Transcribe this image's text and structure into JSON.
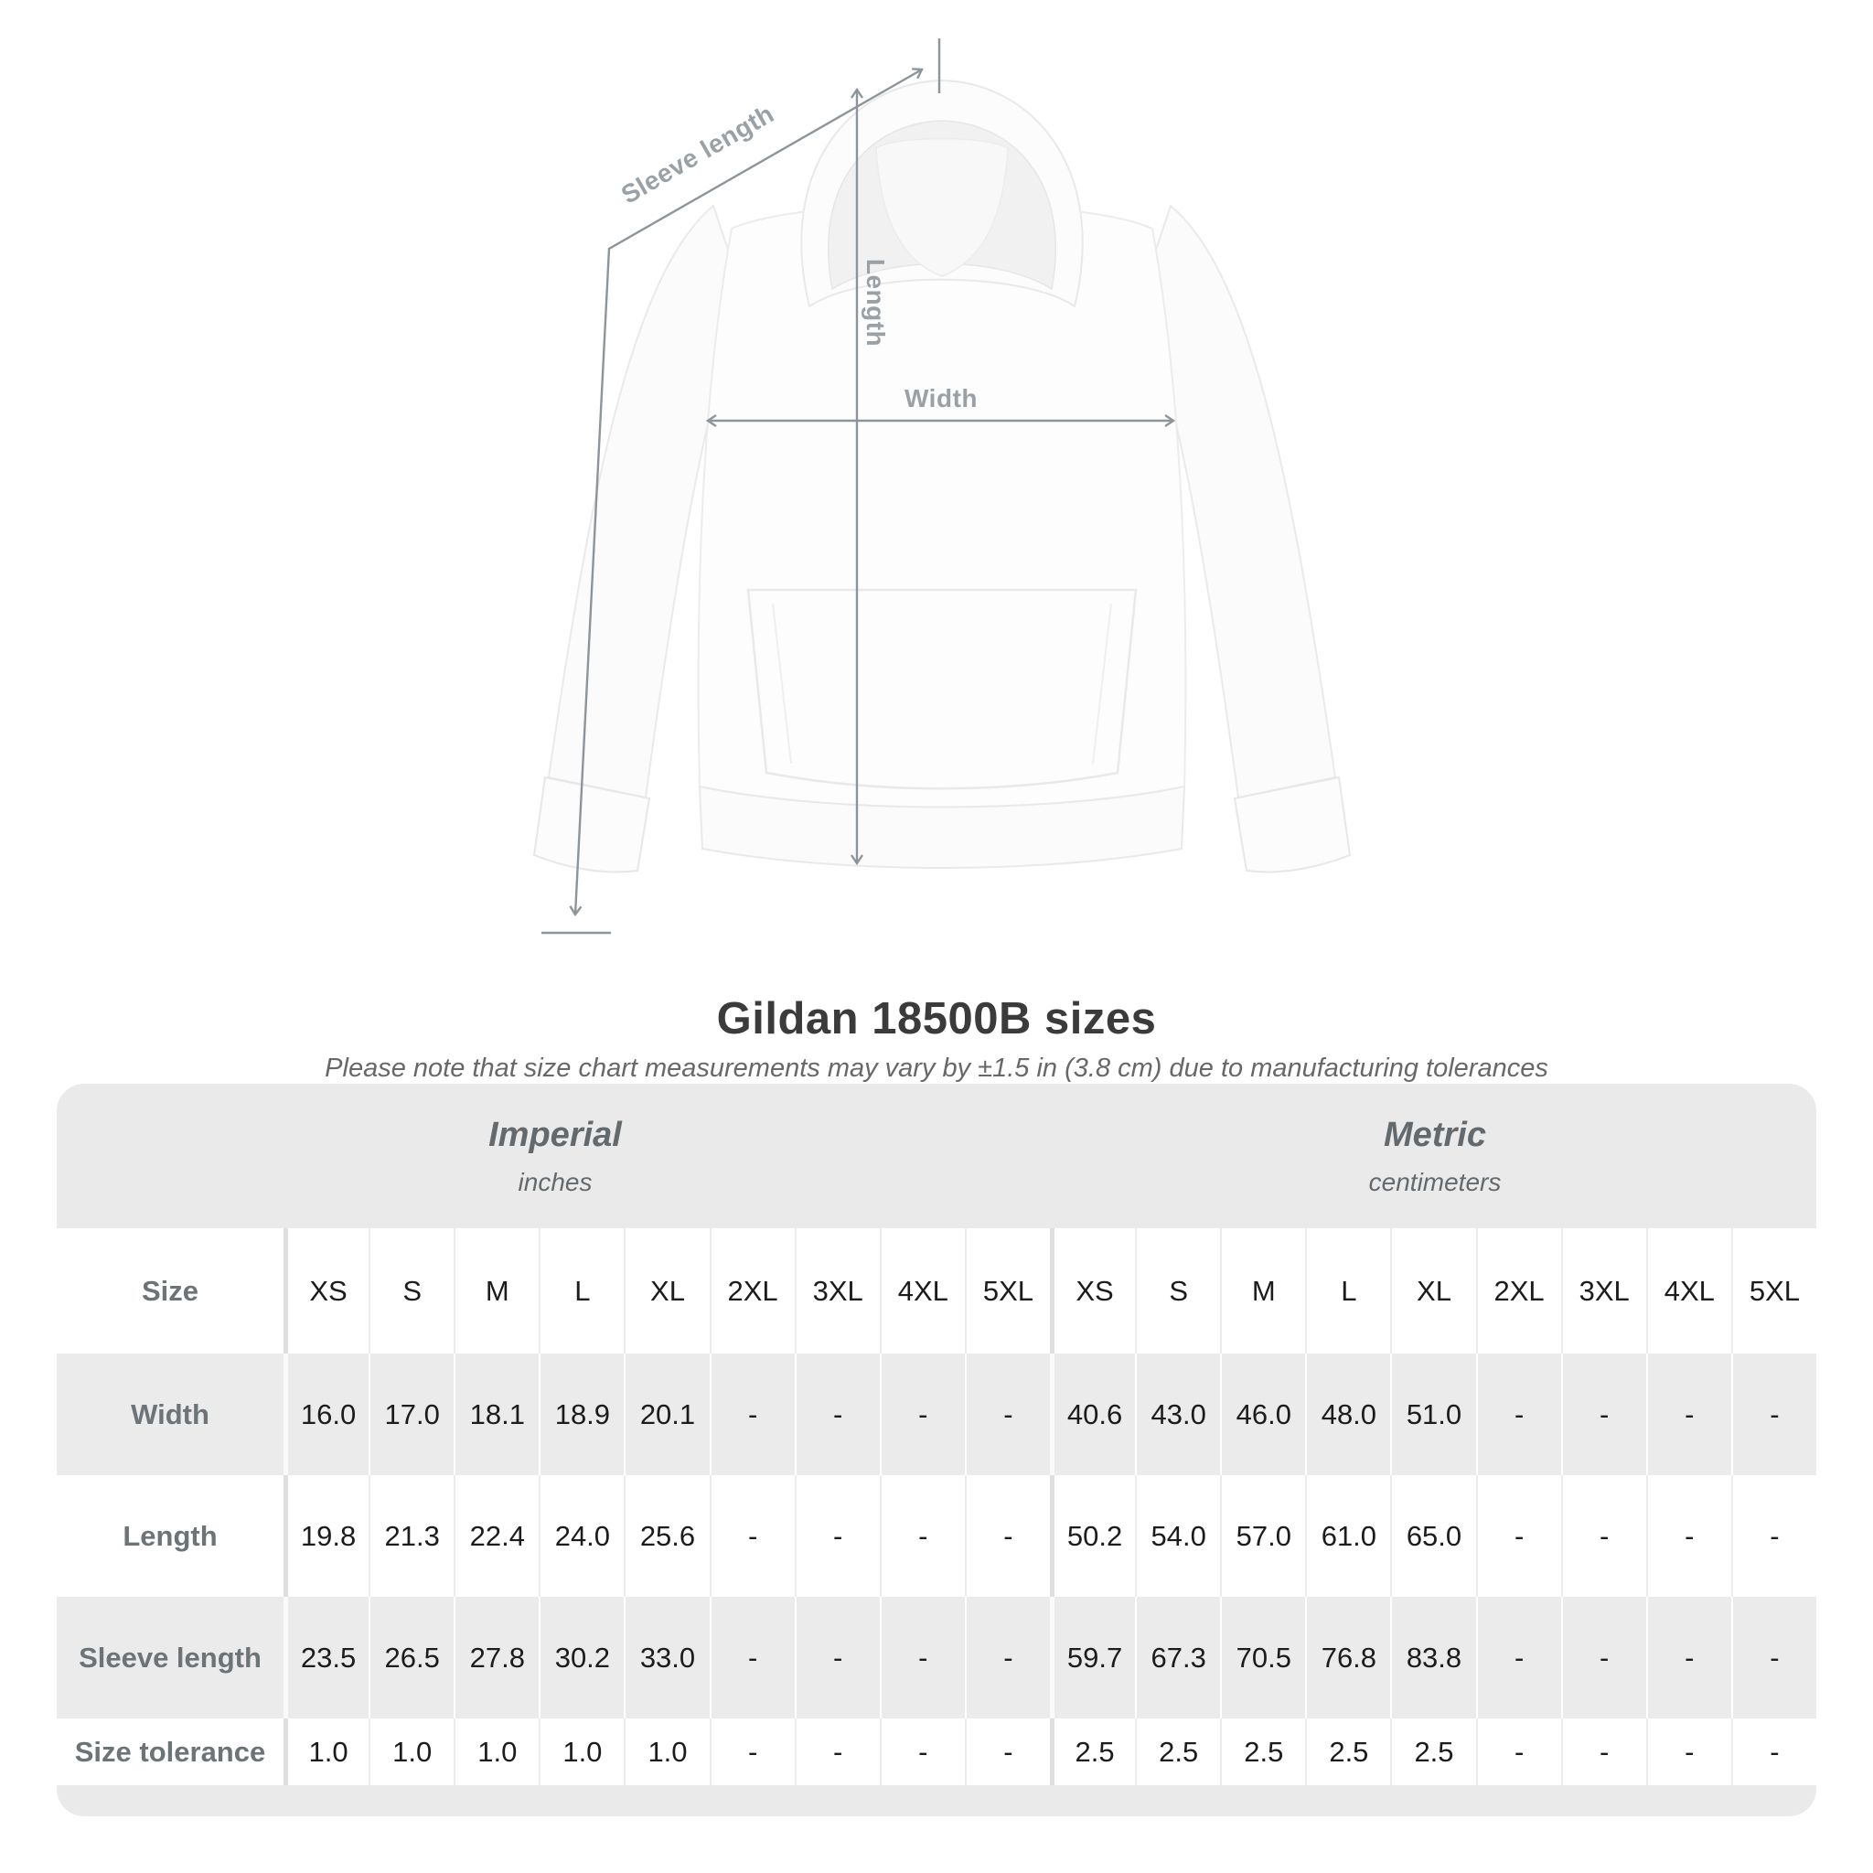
{
  "diagram": {
    "sleeve_length_label": "Sleeve length",
    "length_label": "Length",
    "width_label": "Width"
  },
  "header": {
    "title": "Gildan 18500B sizes",
    "subtitle": "Please note that size chart measurements may vary by ±1.5 in (3.8 cm) due to manufacturing tolerances"
  },
  "table": {
    "size_label": "Size",
    "groups": [
      {
        "name": "Imperial",
        "unit": "inches"
      },
      {
        "name": "Metric",
        "unit": "centimeters"
      }
    ],
    "sizes": [
      "XS",
      "S",
      "M",
      "L",
      "XL",
      "2XL",
      "3XL",
      "4XL",
      "5XL"
    ],
    "rows": [
      {
        "label": "Width",
        "imperial": [
          "16.0",
          "17.0",
          "18.1",
          "18.9",
          "20.1",
          "-",
          "-",
          "-",
          "-"
        ],
        "metric": [
          "40.6",
          "43.0",
          "46.0",
          "48.0",
          "51.0",
          "-",
          "-",
          "-",
          "-"
        ]
      },
      {
        "label": "Length",
        "imperial": [
          "19.8",
          "21.3",
          "22.4",
          "24.0",
          "25.6",
          "-",
          "-",
          "-",
          "-"
        ],
        "metric": [
          "50.2",
          "54.0",
          "57.0",
          "61.0",
          "65.0",
          "-",
          "-",
          "-",
          "-"
        ]
      },
      {
        "label": "Sleeve length",
        "imperial": [
          "23.5",
          "26.5",
          "27.8",
          "30.2",
          "33.0",
          "-",
          "-",
          "-",
          "-"
        ],
        "metric": [
          "59.7",
          "67.3",
          "70.5",
          "76.8",
          "83.8",
          "-",
          "-",
          "-",
          "-"
        ]
      },
      {
        "label": "Size tolerance",
        "imperial": [
          "1.0",
          "1.0",
          "1.0",
          "1.0",
          "1.0",
          "-",
          "-",
          "-",
          "-"
        ],
        "metric": [
          "2.5",
          "2.5",
          "2.5",
          "2.5",
          "2.5",
          "-",
          "-",
          "-",
          "-"
        ]
      }
    ]
  },
  "colors": {
    "band_bg": "#eaeaea",
    "stripe_bg": "#ebebeb",
    "heading_text": "#3b3b3b",
    "muted_text": "#6d7478",
    "value_text": "#1c1c1c",
    "measure_line": "#8d959a",
    "measure_text": "#9aa1a6"
  },
  "chart_data": {
    "type": "table",
    "title": "Gildan 18500B sizes",
    "note": "Please note that size chart measurements may vary by ±1.5 in (3.8 cm) due to manufacturing tolerances",
    "unit_groups": [
      {
        "name": "Imperial",
        "unit": "inches"
      },
      {
        "name": "Metric",
        "unit": "centimeters"
      }
    ],
    "sizes": [
      "XS",
      "S",
      "M",
      "L",
      "XL",
      "2XL",
      "3XL",
      "4XL",
      "5XL"
    ],
    "measurements": [
      {
        "label": "Width",
        "imperial_in": [
          16.0,
          17.0,
          18.1,
          18.9,
          20.1,
          null,
          null,
          null,
          null
        ],
        "metric_cm": [
          40.6,
          43.0,
          46.0,
          48.0,
          51.0,
          null,
          null,
          null,
          null
        ]
      },
      {
        "label": "Length",
        "imperial_in": [
          19.8,
          21.3,
          22.4,
          24.0,
          25.6,
          null,
          null,
          null,
          null
        ],
        "metric_cm": [
          50.2,
          54.0,
          57.0,
          61.0,
          65.0,
          null,
          null,
          null,
          null
        ]
      },
      {
        "label": "Sleeve length",
        "imperial_in": [
          23.5,
          26.5,
          27.8,
          30.2,
          33.0,
          null,
          null,
          null,
          null
        ],
        "metric_cm": [
          59.7,
          67.3,
          70.5,
          76.8,
          83.8,
          null,
          null,
          null,
          null
        ]
      },
      {
        "label": "Size tolerance",
        "imperial_in": [
          1.0,
          1.0,
          1.0,
          1.0,
          1.0,
          null,
          null,
          null,
          null
        ],
        "metric_cm": [
          2.5,
          2.5,
          2.5,
          2.5,
          2.5,
          null,
          null,
          null,
          null
        ]
      }
    ]
  }
}
